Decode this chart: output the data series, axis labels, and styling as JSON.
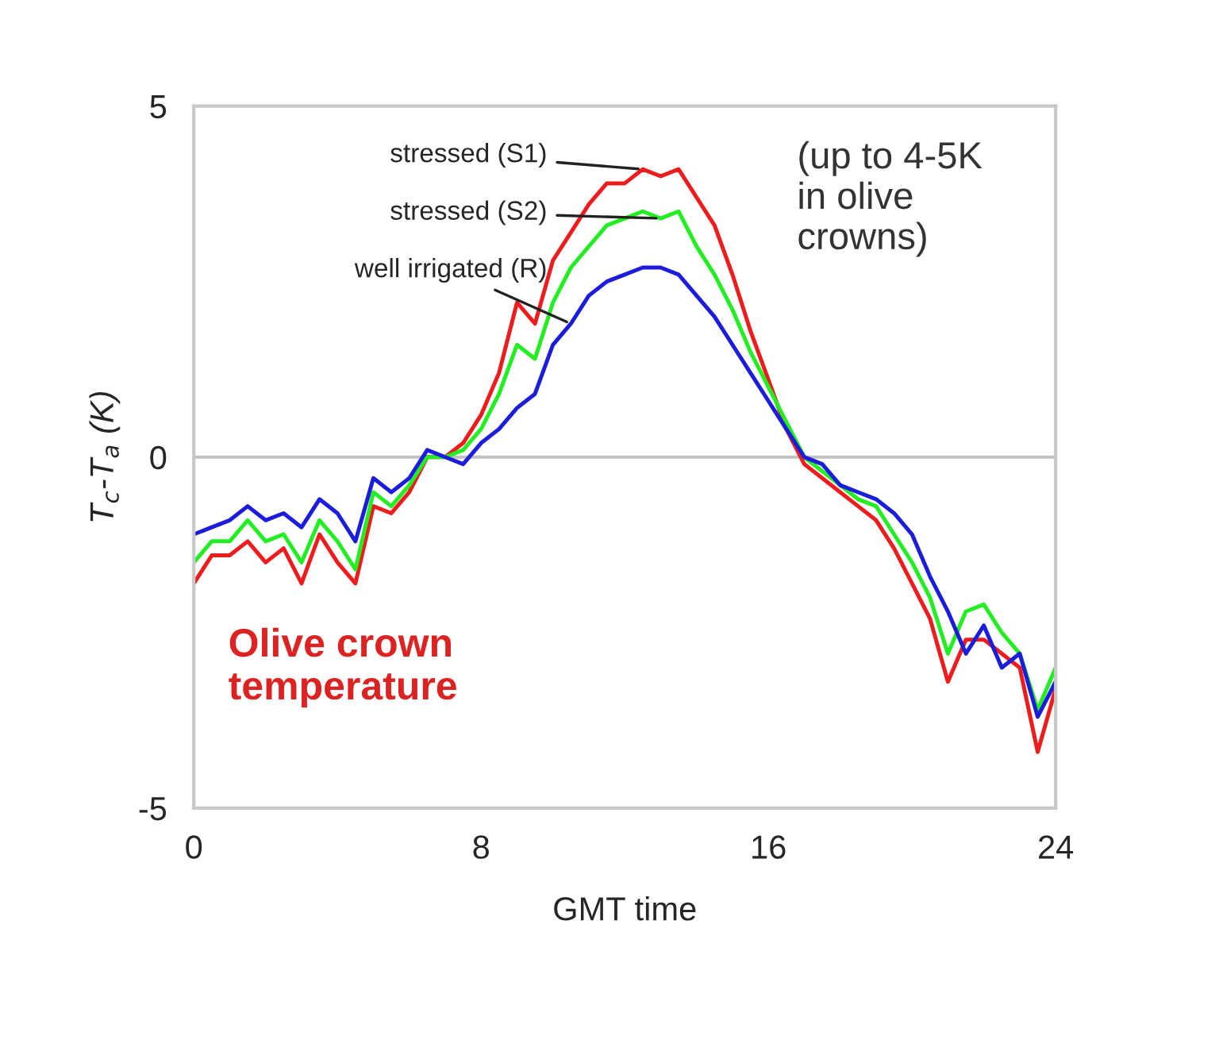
{
  "chart_data": {
    "type": "line",
    "xlabel": "GMT time",
    "ylabel": "T$_{c}$-T$_{a}$ (K)",
    "x": [
      0,
      0.5,
      1,
      1.5,
      2,
      2.5,
      3,
      3.5,
      4,
      4.5,
      5,
      5.5,
      6,
      6.5,
      7,
      7.5,
      8,
      8.5,
      9,
      9.5,
      10,
      10.5,
      11,
      11.5,
      12,
      12.5,
      13,
      13.5,
      14,
      14.5,
      15,
      15.5,
      16,
      16.5,
      17,
      17.5,
      18,
      18.5,
      19,
      19.5,
      20,
      20.5,
      21,
      21.5,
      22,
      22.5,
      23,
      23.5,
      24
    ],
    "series": [
      {
        "color": "#ee1c1c",
        "values": [
          -1.8,
          -1.4,
          -1.4,
          -1.2,
          -1.5,
          -1.3,
          -1.8,
          -1.1,
          -1.5,
          -1.8,
          -0.7,
          -0.8,
          -0.5,
          0.0,
          0.0,
          0.2,
          0.6,
          1.2,
          2.2,
          1.9,
          2.8,
          3.2,
          3.6,
          3.9,
          3.9,
          4.1,
          4.0,
          4.1,
          3.7,
          3.3,
          2.6,
          1.8,
          1.1,
          0.4,
          -0.1,
          -0.3,
          -0.5,
          -0.7,
          -0.9,
          -1.3,
          -1.8,
          -2.3,
          -3.2,
          -2.6,
          -2.6,
          -2.8,
          -3.0,
          -4.2,
          -3.3
        ]
      },
      {
        "color": "#22ee22",
        "values": [
          -1.5,
          -1.2,
          -1.2,
          -0.9,
          -1.2,
          -1.1,
          -1.5,
          -0.9,
          -1.2,
          -1.6,
          -0.5,
          -0.7,
          -0.4,
          0.0,
          0.0,
          0.1,
          0.4,
          0.9,
          1.6,
          1.4,
          2.2,
          2.7,
          3.0,
          3.3,
          3.4,
          3.5,
          3.4,
          3.5,
          3.0,
          2.6,
          2.1,
          1.5,
          1.0,
          0.5,
          0.0,
          -0.2,
          -0.4,
          -0.6,
          -0.7,
          -1.1,
          -1.5,
          -2.0,
          -2.8,
          -2.2,
          -2.1,
          -2.5,
          -2.8,
          -3.6,
          -3.0
        ]
      },
      {
        "color": "#1c1cdd",
        "values": [
          -1.1,
          -1.0,
          -0.9,
          -0.7,
          -0.9,
          -0.8,
          -1.0,
          -0.6,
          -0.8,
          -1.2,
          -0.3,
          -0.5,
          -0.3,
          0.1,
          0.0,
          -0.1,
          0.2,
          0.4,
          0.7,
          0.9,
          1.6,
          1.9,
          2.3,
          2.5,
          2.6,
          2.7,
          2.7,
          2.6,
          2.3,
          2.0,
          1.6,
          1.2,
          0.8,
          0.4,
          0.0,
          -0.1,
          -0.4,
          -0.5,
          -0.6,
          -0.8,
          -1.1,
          -1.7,
          -2.2,
          -2.8,
          -2.4,
          -3.0,
          -2.8,
          -3.7,
          -3.2
        ]
      }
    ],
    "xlim": [
      0,
      24
    ],
    "xticks": [
      0,
      8,
      16,
      24
    ],
    "ylim": [
      -5,
      5
    ],
    "yticks": [
      -5,
      0,
      5
    ],
    "ref_lines": [
      {
        "axis": "y",
        "value": 0,
        "color": "#c0c0c0"
      }
    ],
    "annotations": [
      {
        "text": "stressed (S1)",
        "x": 12.5,
        "y": 4.1
      },
      {
        "text": "stressed (S2)",
        "x": 13,
        "y": 3.4
      },
      {
        "text": "well irrigated (R)",
        "x": 10.5,
        "y": 1.9
      },
      "(up to 4-5K\nin olive\ncrowns)",
      "Olive crown\ntemperature"
    ],
    "grid": false,
    "legend": false,
    "marker": "none",
    "line_style": "solid"
  }
}
